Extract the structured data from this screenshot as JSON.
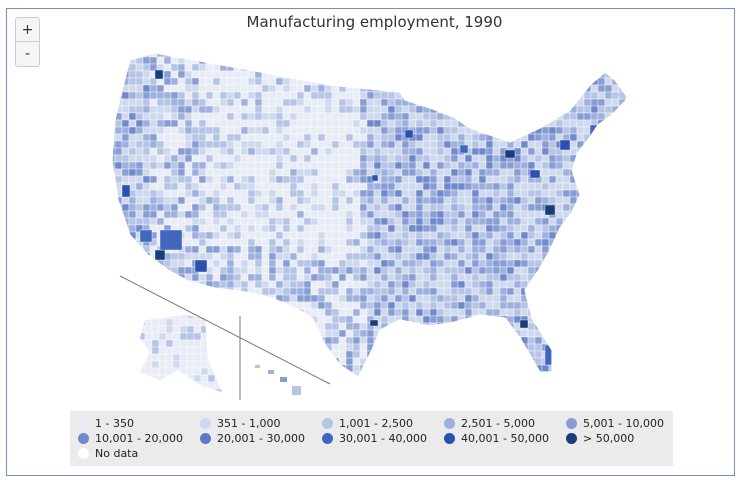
{
  "title": "Manufacturing employment, 1990",
  "zoom": {
    "in_label": "+",
    "out_label": "-"
  },
  "legend": [
    {
      "label": "1 - 350",
      "color": "#e8ecf6"
    },
    {
      "label": "351 - 1,000",
      "color": "#cfd9ee"
    },
    {
      "label": "1,001 - 2,500",
      "color": "#b6c4e6"
    },
    {
      "label": "2,501 - 5,000",
      "color": "#9db0de"
    },
    {
      "label": "5,001 - 10,000",
      "color": "#879dd4"
    },
    {
      "label": "10,001 - 20,000",
      "color": "#6f89cc"
    },
    {
      "label": "20,001 - 30,000",
      "color": "#5b78c2"
    },
    {
      "label": "30,001 - 40,000",
      "color": "#4166bd"
    },
    {
      "label": "40,001 - 50,000",
      "color": "#2a50b0"
    },
    {
      "label": "> 50,000",
      "color": "#173d7a"
    },
    {
      "label": "No data",
      "color": "#ffffff"
    }
  ]
}
